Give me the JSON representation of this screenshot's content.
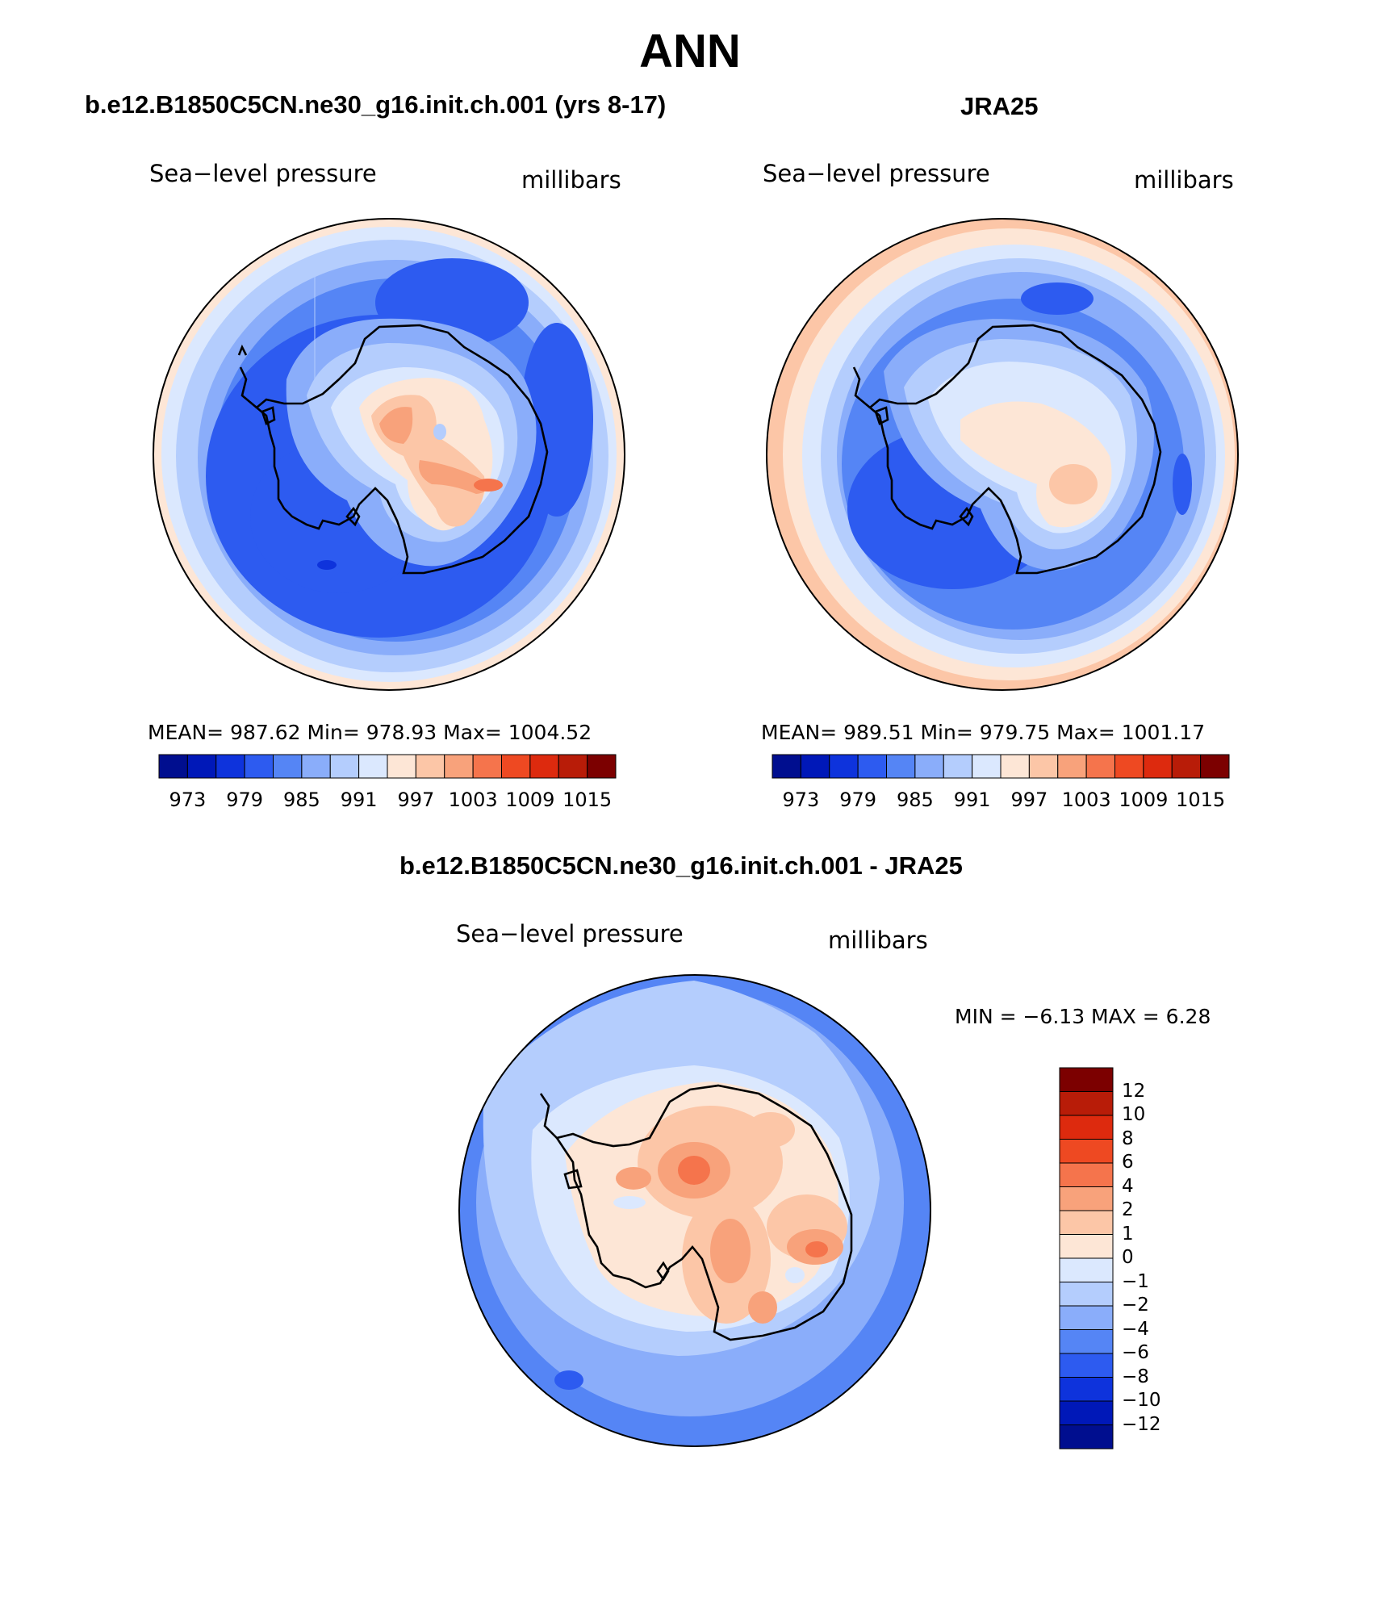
{
  "header": {
    "title": "ANN"
  },
  "panels": [
    {
      "id": "model",
      "title": "b.e12.B1850C5CN.ne30_g16.init.ch.001 (yrs 8-17)",
      "left_label": "Sea−level pressure",
      "right_label": "millibars",
      "stats": "MEAN=  987.62    Min=  978.93    Max=  1004.52"
    },
    {
      "id": "obs",
      "title": "JRA25",
      "left_label": "Sea−level pressure",
      "right_label": "millibars",
      "stats": "MEAN=  989.51    Min=  979.75    Max=  1001.17"
    },
    {
      "id": "diff",
      "title": "b.e12.B1850C5CN.ne30_g16.init.ch.001 - JRA25",
      "left_label": "Sea−level pressure",
      "right_label": "millibars",
      "stats": "MIN =    −6.13  MAX =      6.28"
    }
  ],
  "chart_data": [
    {
      "type": "heatmap",
      "title": "b.e12.B1850C5CN.ne30_g16.init.ch.001 (yrs 8-17)",
      "variable": "Sea-level pressure",
      "units": "millibars",
      "projection": "south polar stereographic",
      "mean": 987.62,
      "min": 978.93,
      "max": 1004.52,
      "colorbar": {
        "orientation": "horizontal",
        "tick_labels": [
          "973",
          "979",
          "985",
          "991",
          "997",
          "1003",
          "1009",
          "1015"
        ],
        "colors": [
          "#000e8f",
          "#0018b8",
          "#0e33dc",
          "#2d5bf0",
          "#5585f5",
          "#8aadfa",
          "#b4cdfd",
          "#dbe8fe",
          "#fde6d6",
          "#fcc6a7",
          "#f8a27b",
          "#f5744c",
          "#ee4922",
          "#dd2a0e",
          "#b81c08",
          "#7c0000"
        ]
      }
    },
    {
      "type": "heatmap",
      "title": "JRA25",
      "variable": "Sea-level pressure",
      "units": "millibars",
      "projection": "south polar stereographic",
      "mean": 989.51,
      "min": 979.75,
      "max": 1001.17,
      "colorbar": {
        "orientation": "horizontal",
        "tick_labels": [
          "973",
          "979",
          "985",
          "991",
          "997",
          "1003",
          "1009",
          "1015"
        ],
        "colors": [
          "#000e8f",
          "#0018b8",
          "#0e33dc",
          "#2d5bf0",
          "#5585f5",
          "#8aadfa",
          "#b4cdfd",
          "#dbe8fe",
          "#fde6d6",
          "#fcc6a7",
          "#f8a27b",
          "#f5744c",
          "#ee4922",
          "#dd2a0e",
          "#b81c08",
          "#7c0000"
        ]
      }
    },
    {
      "type": "heatmap",
      "title": "b.e12.B1850C5CN.ne30_g16.init.ch.001 - JRA25",
      "variable": "Sea-level pressure",
      "units": "millibars",
      "projection": "south polar stereographic",
      "min": -6.13,
      "max": 6.28,
      "colorbar": {
        "orientation": "vertical",
        "tick_labels": [
          "12",
          "10",
          "8",
          "6",
          "4",
          "2",
          "1",
          "0",
          "−1",
          "−2",
          "−4",
          "−6",
          "−8",
          "−10",
          "−12"
        ],
        "colors": [
          "#7c0000",
          "#b81c08",
          "#dd2a0e",
          "#ee4922",
          "#f5744c",
          "#f8a27b",
          "#fcc6a7",
          "#fde6d6",
          "#dbe8fe",
          "#b4cdfd",
          "#8aadfa",
          "#5585f5",
          "#2d5bf0",
          "#0e33dc",
          "#0018b8",
          "#000e8f"
        ]
      }
    }
  ]
}
